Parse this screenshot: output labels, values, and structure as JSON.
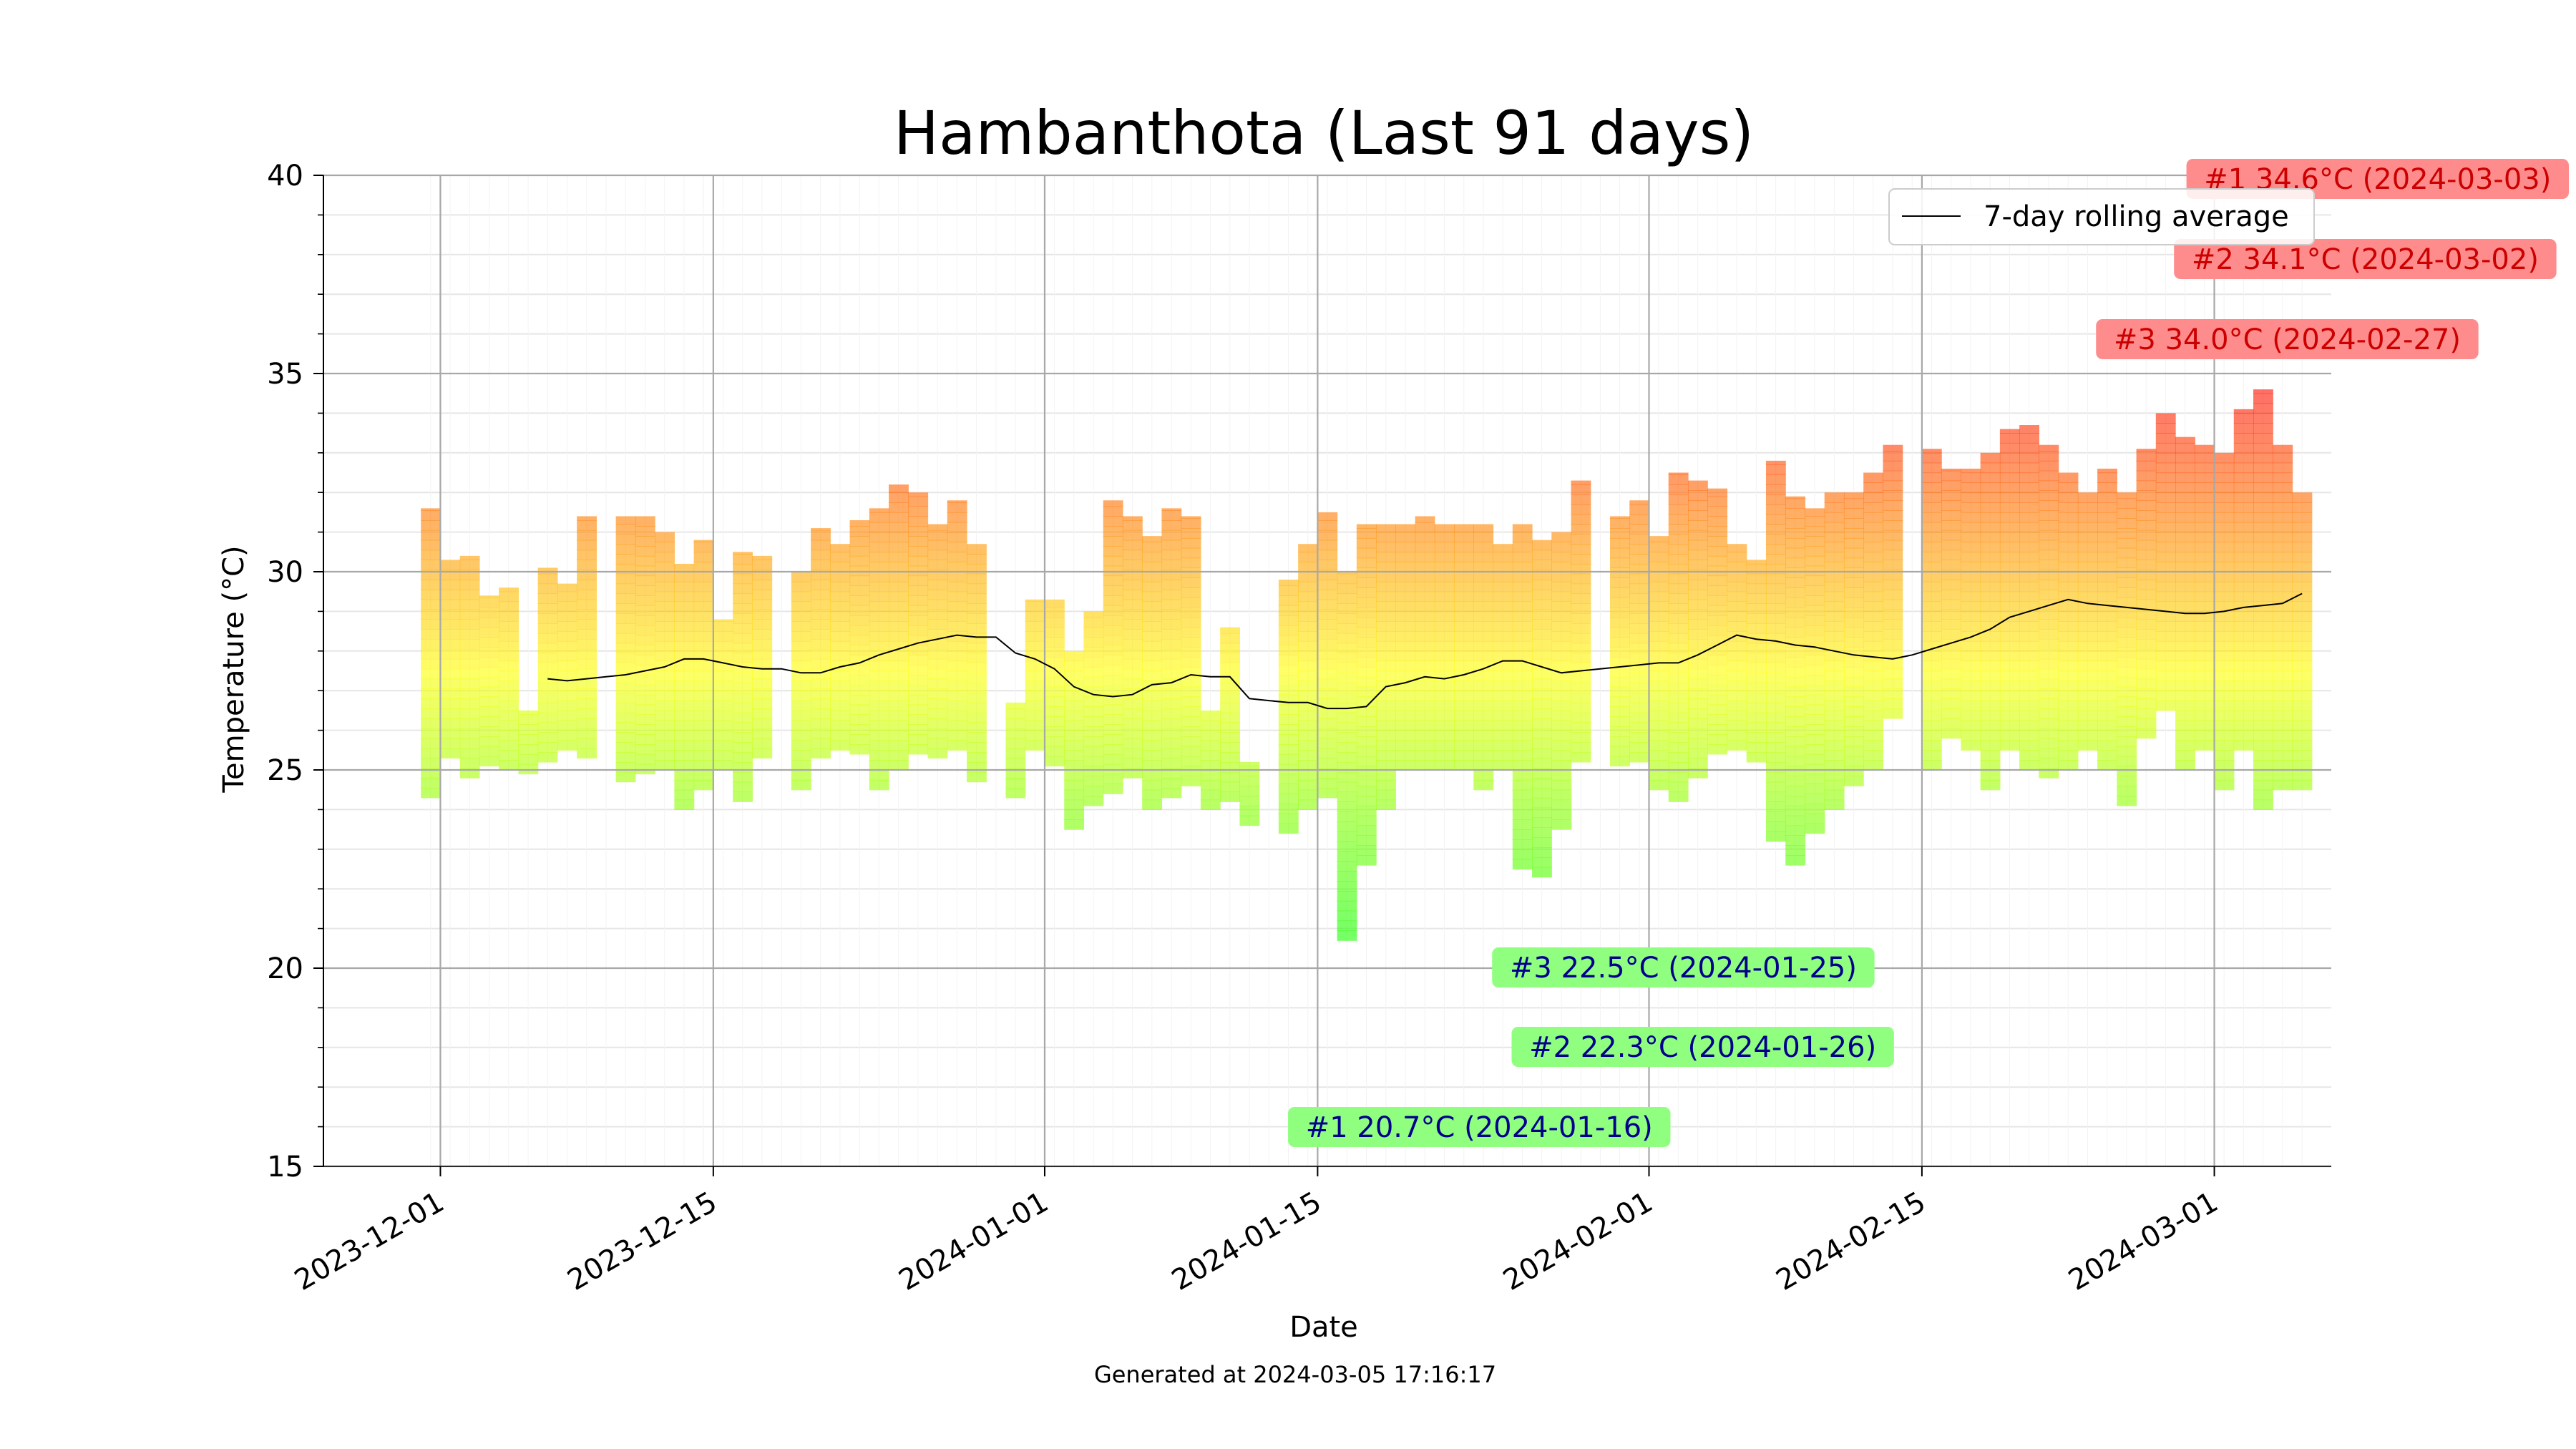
{
  "chart_data": {
    "type": "bar",
    "title": "Hambanthota (Last 91 days)",
    "xlabel": "Date",
    "ylabel": "Temperature (°C)",
    "ylim": [
      15,
      40
    ],
    "x_range": [
      "2023-11-25",
      "2024-03-07"
    ],
    "y_ticks": [
      15,
      20,
      25,
      30,
      35,
      40
    ],
    "x_ticks": [
      "2023-12-01",
      "2023-12-15",
      "2024-01-01",
      "2024-01-15",
      "2024-02-01",
      "2024-02-15",
      "2024-03-01"
    ],
    "grid": true,
    "footer": "Generated at 2024-03-05 17:16:17",
    "legend": {
      "placement": "top-right",
      "entries": [
        "7-day rolling average"
      ]
    },
    "color_scale": {
      "low": "#00ff00",
      "mid": "#ffff00",
      "high": "#ff0000",
      "range": [
        20,
        35
      ]
    },
    "daily": [
      {
        "date": "2023-11-30",
        "min": 24.3,
        "max": 31.6
      },
      {
        "date": "2023-12-01",
        "min": 25.3,
        "max": 30.3
      },
      {
        "date": "2023-12-02",
        "min": 24.8,
        "max": 30.4
      },
      {
        "date": "2023-12-03",
        "min": 25.1,
        "max": 29.4
      },
      {
        "date": "2023-12-04",
        "min": 25.0,
        "max": 29.6
      },
      {
        "date": "2023-12-05",
        "min": 24.9,
        "max": 26.5
      },
      {
        "date": "2023-12-06",
        "min": 25.2,
        "max": 30.1
      },
      {
        "date": "2023-12-07",
        "min": 25.5,
        "max": 29.7
      },
      {
        "date": "2023-12-08",
        "min": 25.3,
        "max": 31.4
      },
      {
        "date": "2023-12-09",
        "min": null,
        "max": null
      },
      {
        "date": "2023-12-10",
        "min": 24.7,
        "max": 31.4
      },
      {
        "date": "2023-12-11",
        "min": 24.9,
        "max": 31.4
      },
      {
        "date": "2023-12-12",
        "min": 25.0,
        "max": 31.0
      },
      {
        "date": "2023-12-13",
        "min": 24.0,
        "max": 30.2
      },
      {
        "date": "2023-12-14",
        "min": 24.5,
        "max": 30.8
      },
      {
        "date": "2023-12-15",
        "min": 25.0,
        "max": 28.8
      },
      {
        "date": "2023-12-16",
        "min": 24.2,
        "max": 30.5
      },
      {
        "date": "2023-12-17",
        "min": 25.3,
        "max": 30.4
      },
      {
        "date": "2023-12-18",
        "min": null,
        "max": null
      },
      {
        "date": "2023-12-19",
        "min": 24.5,
        "max": 30.0
      },
      {
        "date": "2023-12-20",
        "min": 25.3,
        "max": 31.1
      },
      {
        "date": "2023-12-21",
        "min": 25.5,
        "max": 30.7
      },
      {
        "date": "2023-12-22",
        "min": 25.4,
        "max": 31.3
      },
      {
        "date": "2023-12-23",
        "min": 24.5,
        "max": 31.6
      },
      {
        "date": "2023-12-24",
        "min": 25.0,
        "max": 32.2
      },
      {
        "date": "2023-12-25",
        "min": 25.4,
        "max": 32.0
      },
      {
        "date": "2023-12-26",
        "min": 25.3,
        "max": 31.2
      },
      {
        "date": "2023-12-27",
        "min": 25.5,
        "max": 31.8
      },
      {
        "date": "2023-12-28",
        "min": 24.7,
        "max": 30.7
      },
      {
        "date": "2023-12-29",
        "min": null,
        "max": null
      },
      {
        "date": "2023-12-30",
        "min": 24.3,
        "max": 26.7
      },
      {
        "date": "2023-12-31",
        "min": 25.5,
        "max": 29.3
      },
      {
        "date": "2024-01-01",
        "min": 25.1,
        "max": 29.3
      },
      {
        "date": "2024-01-02",
        "min": 23.5,
        "max": 28.0
      },
      {
        "date": "2024-01-03",
        "min": 24.1,
        "max": 29.0
      },
      {
        "date": "2024-01-04",
        "min": 24.4,
        "max": 31.8
      },
      {
        "date": "2024-01-05",
        "min": 24.8,
        "max": 31.4
      },
      {
        "date": "2024-01-06",
        "min": 24.0,
        "max": 30.9
      },
      {
        "date": "2024-01-07",
        "min": 24.3,
        "max": 31.6
      },
      {
        "date": "2024-01-08",
        "min": 24.6,
        "max": 31.4
      },
      {
        "date": "2024-01-09",
        "min": 24.0,
        "max": 26.5
      },
      {
        "date": "2024-01-10",
        "min": 24.2,
        "max": 28.6
      },
      {
        "date": "2024-01-11",
        "min": 23.6,
        "max": 25.2
      },
      {
        "date": "2024-01-12",
        "min": null,
        "max": null
      },
      {
        "date": "2024-01-13",
        "min": 23.4,
        "max": 29.8
      },
      {
        "date": "2024-01-14",
        "min": 24.0,
        "max": 30.7
      },
      {
        "date": "2024-01-15",
        "min": 24.3,
        "max": 31.5
      },
      {
        "date": "2024-01-16",
        "min": 20.7,
        "max": 30.0
      },
      {
        "date": "2024-01-17",
        "min": 22.6,
        "max": 31.2
      },
      {
        "date": "2024-01-18",
        "min": 24.0,
        "max": 31.2
      },
      {
        "date": "2024-01-19",
        "min": 25.0,
        "max": 31.2
      },
      {
        "date": "2024-01-20",
        "min": 25.0,
        "max": 31.4
      },
      {
        "date": "2024-01-21",
        "min": 25.0,
        "max": 31.2
      },
      {
        "date": "2024-01-22",
        "min": 25.0,
        "max": 31.2
      },
      {
        "date": "2024-01-23",
        "min": 24.5,
        "max": 31.2
      },
      {
        "date": "2024-01-24",
        "min": 25.0,
        "max": 30.7
      },
      {
        "date": "2024-01-25",
        "min": 22.5,
        "max": 31.2
      },
      {
        "date": "2024-01-26",
        "min": 22.3,
        "max": 30.8
      },
      {
        "date": "2024-01-27",
        "min": 23.5,
        "max": 31.0
      },
      {
        "date": "2024-01-28",
        "min": 25.2,
        "max": 32.3
      },
      {
        "date": "2024-01-29",
        "min": null,
        "max": null
      },
      {
        "date": "2024-01-30",
        "min": 25.1,
        "max": 31.4
      },
      {
        "date": "2024-01-31",
        "min": 25.2,
        "max": 31.8
      },
      {
        "date": "2024-02-01",
        "min": 24.5,
        "max": 30.9
      },
      {
        "date": "2024-02-02",
        "min": 24.2,
        "max": 32.5
      },
      {
        "date": "2024-02-03",
        "min": 24.8,
        "max": 32.3
      },
      {
        "date": "2024-02-04",
        "min": 25.4,
        "max": 32.1
      },
      {
        "date": "2024-02-05",
        "min": 25.5,
        "max": 30.7
      },
      {
        "date": "2024-02-06",
        "min": 25.2,
        "max": 30.3
      },
      {
        "date": "2024-02-07",
        "min": 23.2,
        "max": 32.8
      },
      {
        "date": "2024-02-08",
        "min": 22.6,
        "max": 31.9
      },
      {
        "date": "2024-02-09",
        "min": 23.4,
        "max": 31.6
      },
      {
        "date": "2024-02-10",
        "min": 24.0,
        "max": 32.0
      },
      {
        "date": "2024-02-11",
        "min": 24.6,
        "max": 32.0
      },
      {
        "date": "2024-02-12",
        "min": 25.0,
        "max": 32.5
      },
      {
        "date": "2024-02-13",
        "min": 26.3,
        "max": 33.2
      },
      {
        "date": "2024-02-14",
        "min": null,
        "max": null
      },
      {
        "date": "2024-02-15",
        "min": 25.0,
        "max": 33.1
      },
      {
        "date": "2024-02-16",
        "min": 25.8,
        "max": 32.6
      },
      {
        "date": "2024-02-17",
        "min": 25.5,
        "max": 32.6
      },
      {
        "date": "2024-02-18",
        "min": 24.5,
        "max": 33.0
      },
      {
        "date": "2024-02-19",
        "min": 25.5,
        "max": 33.6
      },
      {
        "date": "2024-02-20",
        "min": 25.0,
        "max": 33.7
      },
      {
        "date": "2024-02-21",
        "min": 24.8,
        "max": 33.2
      },
      {
        "date": "2024-02-22",
        "min": 25.0,
        "max": 32.5
      },
      {
        "date": "2024-02-23",
        "min": 25.5,
        "max": 32.0
      },
      {
        "date": "2024-02-24",
        "min": 25.0,
        "max": 32.6
      },
      {
        "date": "2024-02-25",
        "min": 24.1,
        "max": 32.0
      },
      {
        "date": "2024-02-26",
        "min": 25.8,
        "max": 33.1
      },
      {
        "date": "2024-02-27",
        "min": 26.5,
        "max": 34.0
      },
      {
        "date": "2024-02-28",
        "min": 25.0,
        "max": 33.4
      },
      {
        "date": "2024-02-29",
        "min": 25.5,
        "max": 33.2
      },
      {
        "date": "2024-03-01",
        "min": 24.5,
        "max": 33.0
      },
      {
        "date": "2024-03-02",
        "min": 25.5,
        "max": 34.1
      },
      {
        "date": "2024-03-03",
        "min": 24.0,
        "max": 34.6
      },
      {
        "date": "2024-03-04",
        "min": 24.5,
        "max": 33.2
      },
      {
        "date": "2024-03-05",
        "min": 24.5,
        "max": 32.0
      }
    ],
    "rolling_average": {
      "name": "7-day rolling average",
      "dates": [
        "2023-12-06",
        "2023-12-07",
        "2023-12-08",
        "2023-12-09",
        "2023-12-10",
        "2023-12-11",
        "2023-12-12",
        "2023-12-13",
        "2023-12-14",
        "2023-12-15",
        "2023-12-16",
        "2023-12-17",
        "2023-12-18",
        "2023-12-19",
        "2023-12-20",
        "2023-12-21",
        "2023-12-22",
        "2023-12-23",
        "2023-12-24",
        "2023-12-25",
        "2023-12-26",
        "2023-12-27",
        "2023-12-28",
        "2023-12-29",
        "2023-12-30",
        "2023-12-31",
        "2024-01-01",
        "2024-01-02",
        "2024-01-03",
        "2024-01-04",
        "2024-01-05",
        "2024-01-06",
        "2024-01-07",
        "2024-01-08",
        "2024-01-09",
        "2024-01-10",
        "2024-01-11",
        "2024-01-12",
        "2024-01-13",
        "2024-01-14",
        "2024-01-15",
        "2024-01-16",
        "2024-01-17",
        "2024-01-18",
        "2024-01-19",
        "2024-01-20",
        "2024-01-21",
        "2024-01-22",
        "2024-01-23",
        "2024-01-24",
        "2024-01-25",
        "2024-01-26",
        "2024-01-27",
        "2024-01-28",
        "2024-01-29",
        "2024-01-30",
        "2024-01-31",
        "2024-02-01",
        "2024-02-02",
        "2024-02-03",
        "2024-02-04",
        "2024-02-05",
        "2024-02-06",
        "2024-02-07",
        "2024-02-08",
        "2024-02-09",
        "2024-02-10",
        "2024-02-11",
        "2024-02-12",
        "2024-02-13",
        "2024-02-14",
        "2024-02-15",
        "2024-02-16",
        "2024-02-17",
        "2024-02-18",
        "2024-02-19",
        "2024-02-20",
        "2024-02-21",
        "2024-02-22",
        "2024-02-23",
        "2024-02-24",
        "2024-02-25",
        "2024-02-26",
        "2024-02-27",
        "2024-02-28",
        "2024-02-29",
        "2024-03-01",
        "2024-03-02",
        "2024-03-03",
        "2024-03-04",
        "2024-03-05"
      ],
      "values": [
        27.3,
        27.25,
        27.3,
        27.35,
        27.4,
        27.5,
        27.6,
        27.8,
        27.8,
        27.7,
        27.6,
        27.55,
        27.55,
        27.45,
        27.45,
        27.6,
        27.7,
        27.9,
        28.05,
        28.2,
        28.3,
        28.4,
        28.35,
        28.35,
        27.95,
        27.8,
        27.55,
        27.1,
        26.9,
        26.85,
        26.9,
        27.15,
        27.2,
        27.4,
        27.35,
        27.35,
        26.8,
        26.75,
        26.7,
        26.7,
        26.55,
        26.55,
        26.6,
        27.1,
        27.2,
        27.35,
        27.3,
        27.4,
        27.55,
        27.75,
        27.75,
        27.6,
        27.45,
        27.5,
        27.55,
        27.6,
        27.65,
        27.7,
        27.7,
        27.9,
        28.15,
        28.4,
        28.3,
        28.25,
        28.15,
        28.1,
        28.0,
        27.9,
        27.85,
        27.8,
        27.9,
        28.05,
        28.2,
        28.35,
        28.55,
        28.85,
        29.0,
        29.15,
        29.3,
        29.2,
        29.15,
        29.1,
        29.05,
        29.0,
        28.95,
        28.95,
        29.0,
        29.1,
        29.15,
        29.2,
        29.45
      ]
    },
    "annotations": {
      "hottest": [
        {
          "label": "#1 34.6°C (2024-03-03)",
          "date": "2024-03-03",
          "value": 34.6
        },
        {
          "label": "#2 34.1°C (2024-03-02)",
          "date": "2024-03-02",
          "value": 34.1
        },
        {
          "label": "#3 34.0°C (2024-02-27)",
          "date": "2024-02-27",
          "value": 34.0
        }
      ],
      "coldest": [
        {
          "label": "#1 20.7°C (2024-01-16)",
          "date": "2024-01-16",
          "value": 20.7
        },
        {
          "label": "#2 22.3°C (2024-01-26)",
          "date": "2024-01-26",
          "value": 22.3
        },
        {
          "label": "#3 22.5°C (2024-01-25)",
          "date": "2024-01-25",
          "value": 22.5
        }
      ],
      "hot_box_color": "#ff8c8c",
      "hot_text_color": "#cc0000",
      "cold_box_color": "#90ff80",
      "cold_text_color": "#00008b"
    }
  }
}
